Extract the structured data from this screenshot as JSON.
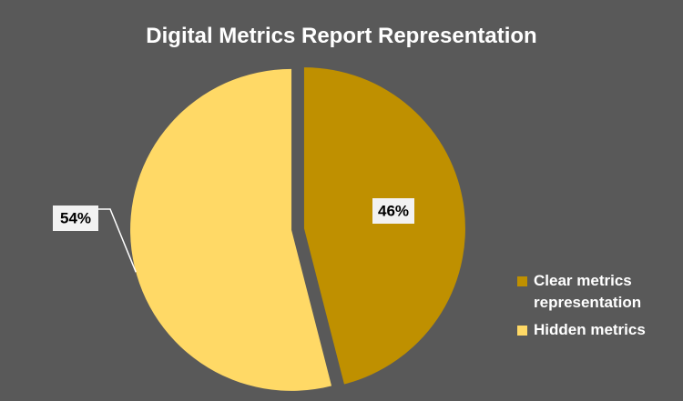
{
  "chart_data": {
    "type": "pie",
    "title": "Digital Metrics Report Representation",
    "slices": [
      {
        "name": "Clear metrics representation",
        "value": 46,
        "label": "46%",
        "color": "#bf9000"
      },
      {
        "name": "Hidden metrics",
        "value": 54,
        "label": "54%",
        "color": "#ffd966"
      }
    ],
    "legend_position": "right",
    "exploded": true,
    "background_color": "#595959"
  }
}
